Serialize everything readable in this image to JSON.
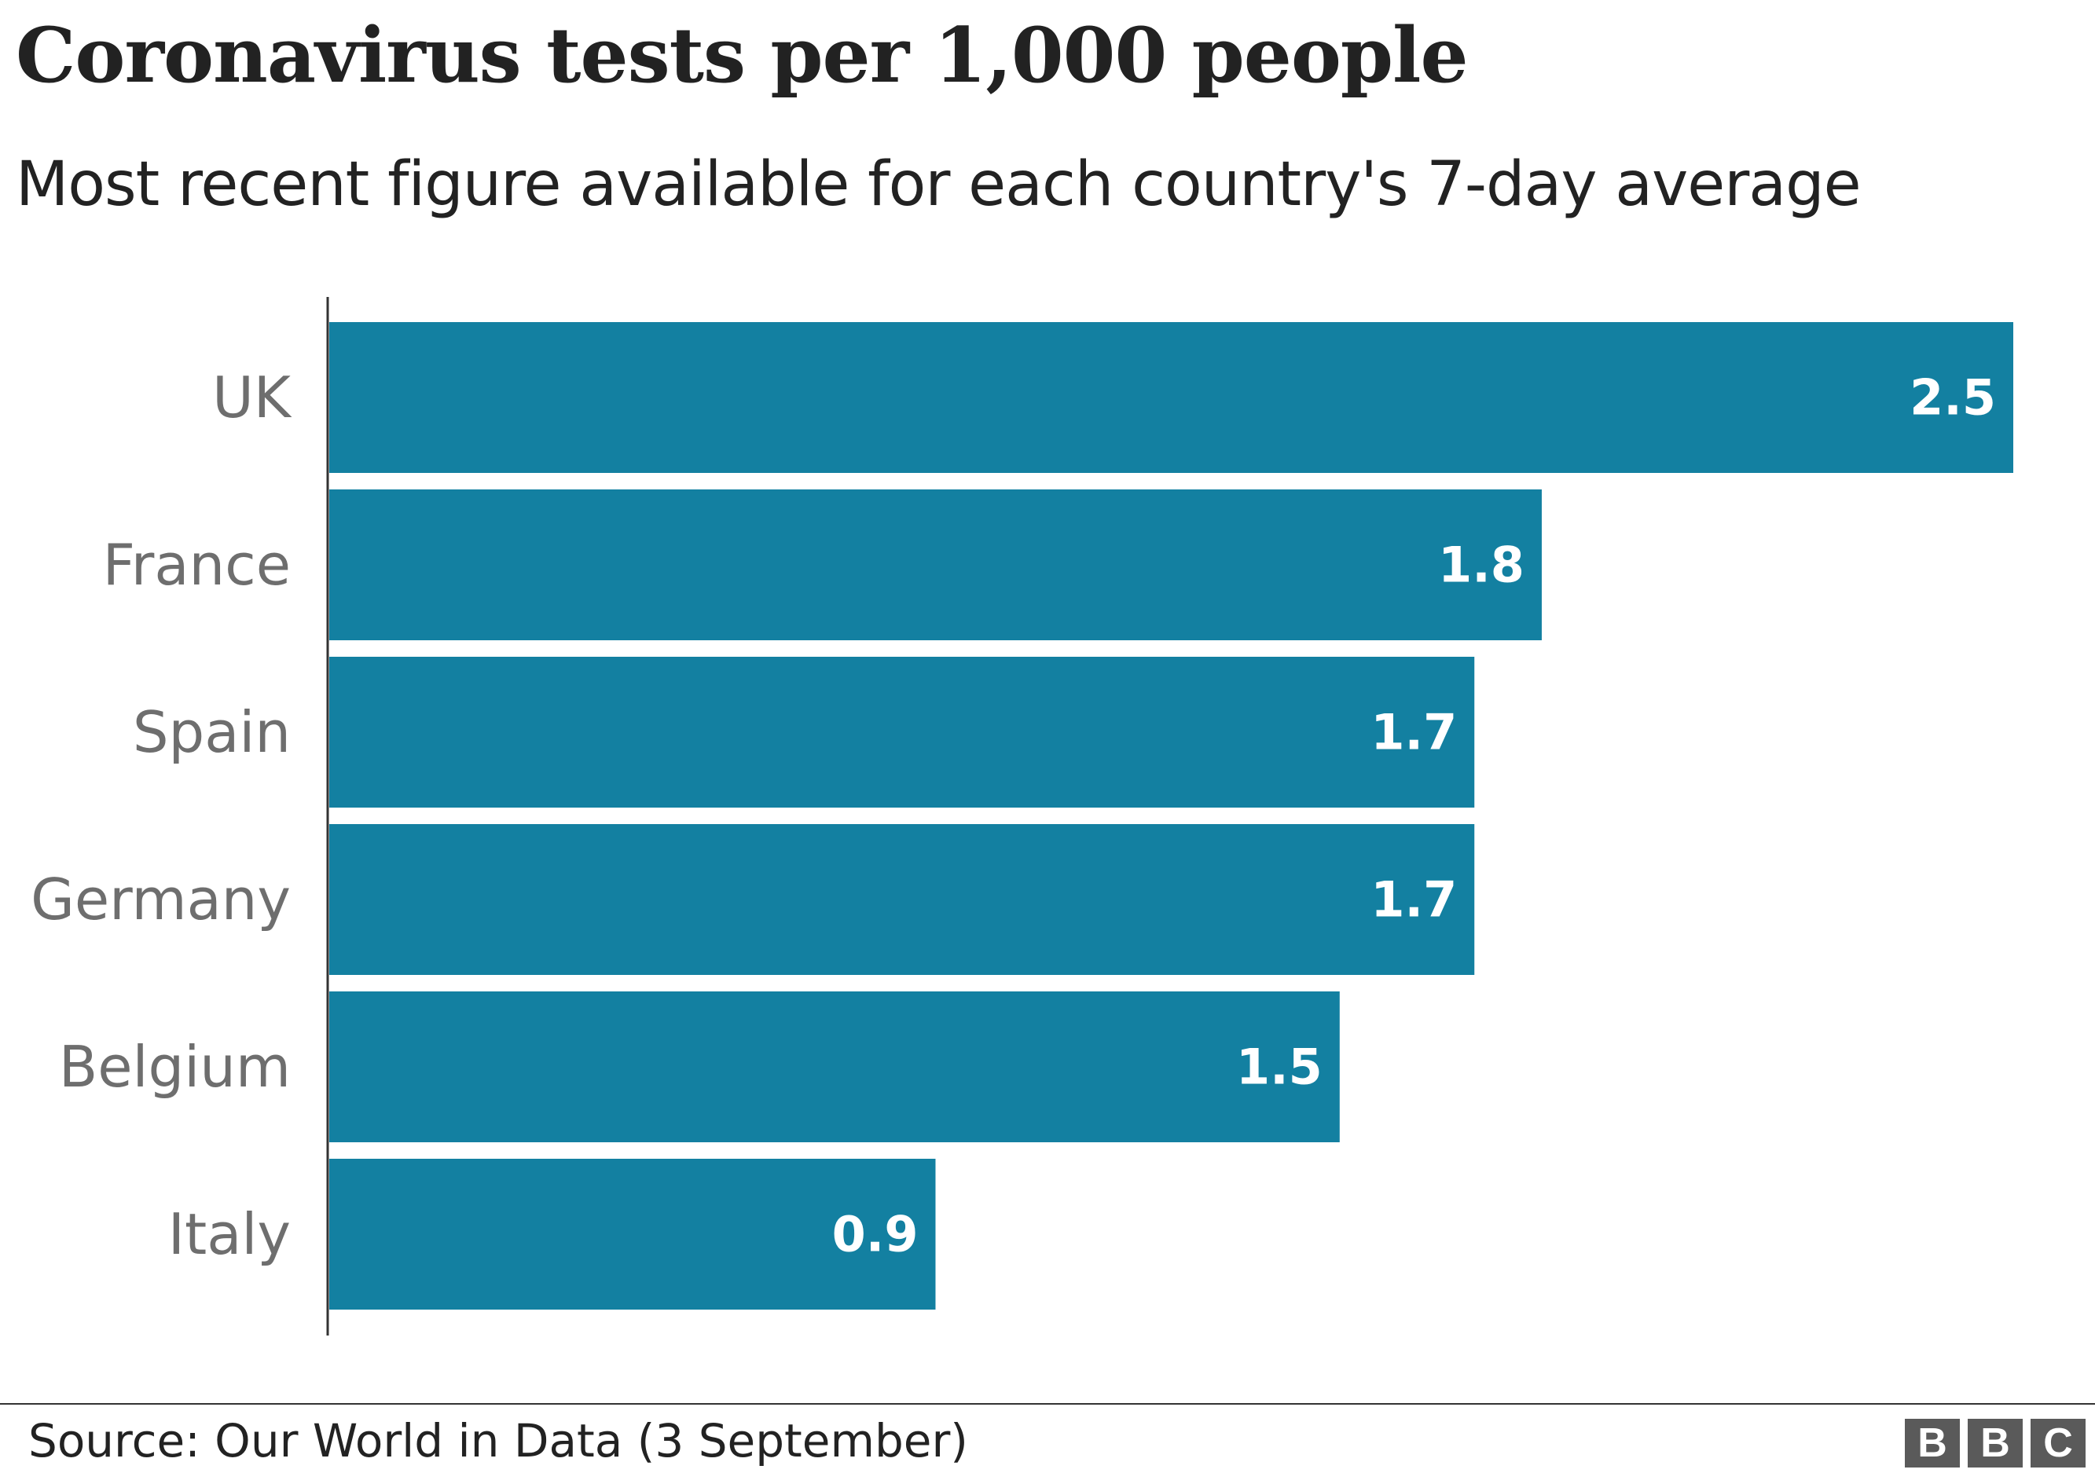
{
  "header": {
    "title": "Coronavirus tests per 1,000 people",
    "subtitle": "Most recent figure available for each country's 7-day average"
  },
  "footer": {
    "source": "Source: Our World in Data (3 September)",
    "logo_letters": [
      "B",
      "B",
      "C"
    ]
  },
  "chart_data": {
    "type": "bar",
    "orientation": "horizontal",
    "categories": [
      "UK",
      "France",
      "Spain",
      "Germany",
      "Belgium",
      "Italy"
    ],
    "values": [
      2.5,
      1.8,
      1.7,
      1.7,
      1.5,
      0.9
    ],
    "value_labels": [
      "2.5",
      "1.8",
      "1.7",
      "1.7",
      "1.5",
      "0.9"
    ],
    "title": "Coronavirus tests per 1,000 people",
    "subtitle": "Most recent figure available for each country's 7-day average",
    "xlabel": "",
    "ylabel": "",
    "xlim": [
      0,
      2.5
    ],
    "grid": false,
    "legend": "none",
    "bar_color": "#1380a1",
    "label_color": "#ffffff"
  }
}
